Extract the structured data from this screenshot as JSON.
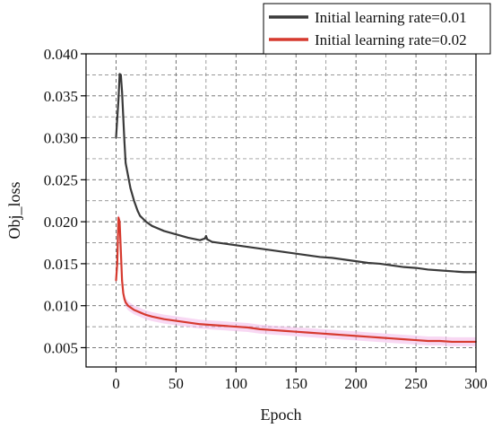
{
  "chart_data": {
    "type": "line",
    "title": "",
    "xlabel": "Epoch",
    "ylabel": "Obj_loss",
    "xlim": [
      -25,
      300
    ],
    "ylim": [
      0.0027,
      0.04
    ],
    "xticks": [
      0,
      50,
      100,
      150,
      200,
      250,
      300
    ],
    "yticks": [
      0.005,
      0.01,
      0.015,
      0.02,
      0.025,
      0.03,
      0.035,
      0.04
    ],
    "ytick_labels": [
      "0.005",
      "0.010",
      "0.015",
      "0.020",
      "0.025",
      "0.030",
      "0.035",
      "0.040"
    ],
    "grid": true,
    "legend_position": "top-right",
    "series": [
      {
        "name": "Initial learning rate=0.01",
        "color": "#3a3a3a",
        "x": [
          0,
          2,
          3,
          4,
          5,
          6,
          7,
          8,
          10,
          12,
          15,
          18,
          20,
          25,
          30,
          40,
          50,
          60,
          70,
          74,
          75,
          76,
          80,
          90,
          100,
          110,
          120,
          130,
          140,
          150,
          160,
          170,
          180,
          190,
          200,
          210,
          220,
          230,
          240,
          250,
          260,
          270,
          280,
          290,
          300
        ],
        "y": [
          0.03,
          0.0345,
          0.0376,
          0.0375,
          0.0355,
          0.0325,
          0.0295,
          0.027,
          0.0255,
          0.024,
          0.0225,
          0.0213,
          0.0207,
          0.02,
          0.0195,
          0.0189,
          0.0185,
          0.0181,
          0.0178,
          0.018,
          0.0183,
          0.0179,
          0.0176,
          0.0174,
          0.0172,
          0.017,
          0.0168,
          0.0166,
          0.0164,
          0.0162,
          0.016,
          0.0158,
          0.0157,
          0.0155,
          0.0153,
          0.0151,
          0.015,
          0.0148,
          0.0146,
          0.0145,
          0.0143,
          0.0142,
          0.0141,
          0.014,
          0.014
        ]
      },
      {
        "name": "Initial learning rate=0.02",
        "color": "#d63a2f",
        "band_color": "#f2b8ea",
        "x": [
          0,
          1,
          2,
          3,
          4,
          5,
          6,
          7,
          8,
          10,
          12,
          15,
          20,
          25,
          30,
          40,
          50,
          60,
          70,
          80,
          90,
          100,
          110,
          120,
          130,
          140,
          150,
          160,
          170,
          180,
          190,
          200,
          210,
          220,
          230,
          240,
          250,
          260,
          270,
          280,
          290,
          300
        ],
        "y": [
          0.013,
          0.015,
          0.0205,
          0.02,
          0.0165,
          0.013,
          0.0115,
          0.0108,
          0.0104,
          0.01,
          0.0098,
          0.0095,
          0.0092,
          0.0089,
          0.0087,
          0.0084,
          0.0082,
          0.008,
          0.0078,
          0.0077,
          0.0076,
          0.0075,
          0.0074,
          0.0072,
          0.0071,
          0.007,
          0.0069,
          0.0068,
          0.0067,
          0.0066,
          0.0065,
          0.0064,
          0.0063,
          0.0062,
          0.0061,
          0.006,
          0.0059,
          0.0058,
          0.0058,
          0.0057,
          0.0057,
          0.0057
        ]
      }
    ]
  }
}
